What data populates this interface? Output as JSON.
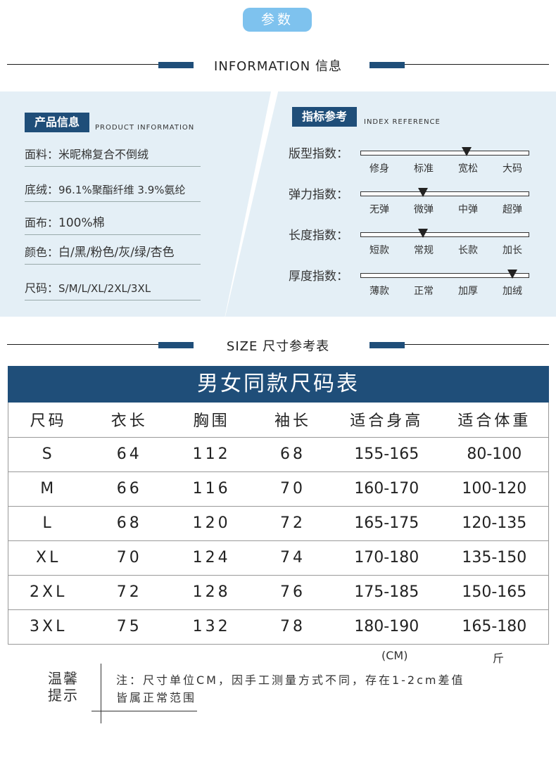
{
  "header_tag": "参数",
  "info_divider": "INFORMATION 信息",
  "product_info": {
    "title": "产品信息",
    "subtitle": "PRODUCT INFORMATION",
    "rows": [
      {
        "label": "面料：",
        "value": "米昵棉复合不倒绒"
      },
      {
        "label": "底绒：",
        "value": "96.1%聚酯纤维   3.9%氨纶"
      },
      {
        "label": "面布：",
        "value": "100%棉"
      },
      {
        "label": "颜色：",
        "value": "白/黑/粉色/灰/绿/杏色"
      },
      {
        "label": "尺码：",
        "value": "S/M/L/XL/2XL/3XL"
      }
    ]
  },
  "index_reference": {
    "title": "指标参考",
    "subtitle": "INDEX REFERENCE",
    "rows": [
      {
        "label": "版型指数：",
        "options": [
          "修身",
          "标准",
          "宽松",
          "大码"
        ],
        "level": 0.63
      },
      {
        "label": "弹力指数：",
        "options": [
          "无弹",
          "微弹",
          "中弹",
          "超弹"
        ],
        "level": 0.37
      },
      {
        "label": "长度指数：",
        "options": [
          "短款",
          "常规",
          "长款",
          "加长"
        ],
        "level": 0.37
      },
      {
        "label": "厚度指数：",
        "options": [
          "薄款",
          "正常",
          "加厚",
          "加绒"
        ],
        "level": 0.9
      }
    ]
  },
  "size_divider": "SIZE 尺寸参考表",
  "size_table": {
    "title": "男女同款尺码表",
    "headers": [
      "尺码",
      "衣长",
      "胸围",
      "袖长",
      "适合身高",
      "适合体重"
    ],
    "rows": [
      [
        "S",
        "64",
        "112",
        "68",
        "155-165",
        "80-100"
      ],
      [
        "M",
        "66",
        "116",
        "70",
        "160-170",
        "100-120"
      ],
      [
        "L",
        "68",
        "120",
        "72",
        "165-175",
        "120-135"
      ],
      [
        "XL",
        "70",
        "124",
        "74",
        "170-180",
        "135-150"
      ],
      [
        "2XL",
        "72",
        "128",
        "76",
        "175-185",
        "150-165"
      ],
      [
        "3XL",
        "75",
        "132",
        "78",
        "180-190",
        "165-180"
      ]
    ],
    "unit_height": "(CM)",
    "unit_weight": "斤"
  },
  "tip": {
    "label_line1": "温馨",
    "label_line2": "提示",
    "text_line1": "注：尺寸单位CM，因手工测量方式不同，存在1-2cm差值",
    "text_line2": "皆属正常范围"
  },
  "colors": {
    "accent": "#1f4e79",
    "pill": "#7ec2ee",
    "panel": "#e4eff6"
  }
}
